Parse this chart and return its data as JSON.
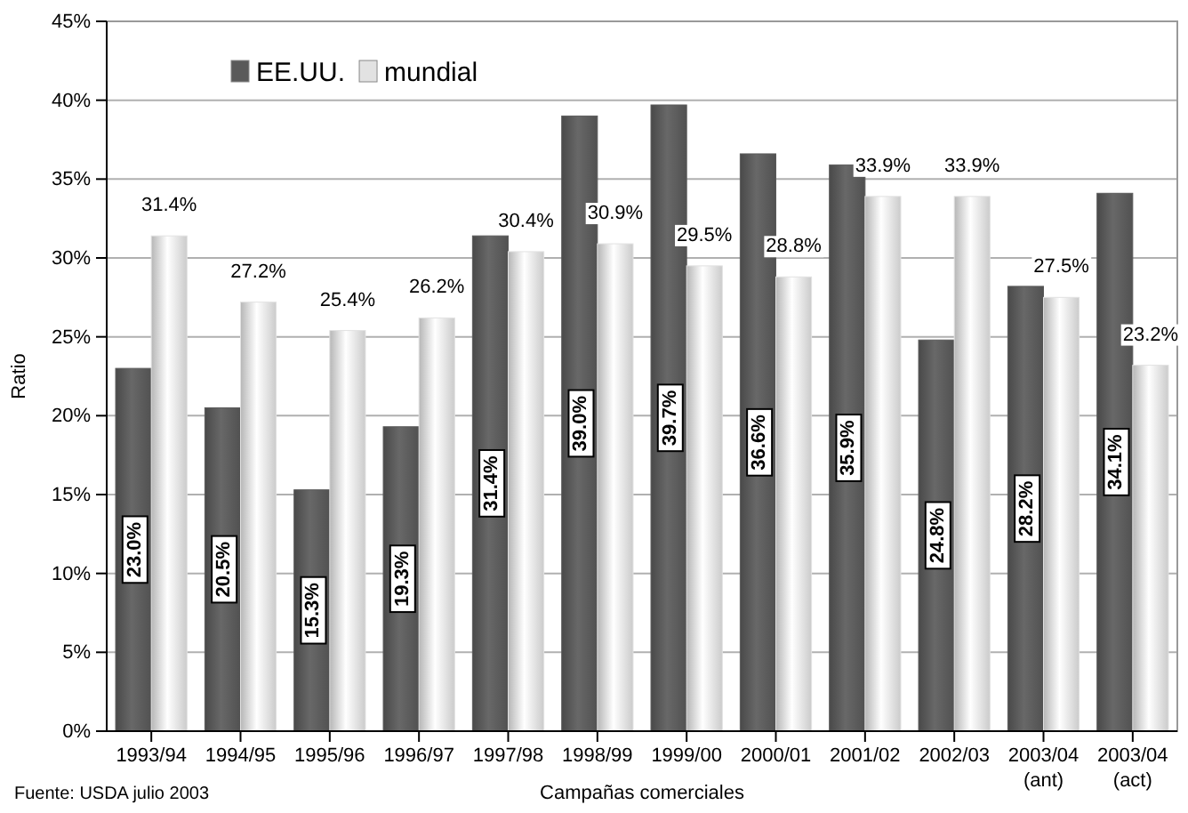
{
  "chart_data": {
    "type": "bar",
    "xlabel": "Campañas comerciales",
    "ylabel": "Ratio",
    "categories": [
      "1993/94",
      "1994/95",
      "1995/96",
      "1996/97",
      "1997/98",
      "1998/99",
      "1999/00",
      "2000/01",
      "2001/02",
      "2002/03",
      "2003/04 (ant)",
      "2003/04 (act)"
    ],
    "series": [
      {
        "name": "EE.UU.",
        "color": "#5a5a5a",
        "values": [
          23.0,
          20.5,
          15.3,
          19.3,
          31.4,
          39.0,
          39.7,
          36.6,
          35.9,
          24.8,
          28.2,
          34.1
        ],
        "value_labels": [
          "23.0%",
          "20.5%",
          "15.3%",
          "19.3%",
          "31.4%",
          "39.0%",
          "39.7%",
          "36.6%",
          "35.9%",
          "24.8%",
          "28.2%",
          "34.1%"
        ]
      },
      {
        "name": "mundial",
        "color": "#e2e2e2",
        "values": [
          31.4,
          27.2,
          25.4,
          26.2,
          30.4,
          30.9,
          29.5,
          28.8,
          33.9,
          33.9,
          27.5,
          23.2
        ],
        "value_labels": [
          "31.4%",
          "27.2%",
          "25.4%",
          "26.2%",
          "30.4%",
          "30.9%",
          "29.5%",
          "28.8%",
          "33.9%",
          "33.9%",
          "27.5%",
          "23.2%"
        ]
      }
    ],
    "ylim": [
      0,
      45
    ],
    "yticks": [
      {
        "value": 0,
        "label": "0%"
      },
      {
        "value": 5,
        "label": "5%"
      },
      {
        "value": 10,
        "label": "10%"
      },
      {
        "value": 15,
        "label": "15%"
      },
      {
        "value": 20,
        "label": "20%"
      },
      {
        "value": 25,
        "label": "25%"
      },
      {
        "value": 30,
        "label": "30%"
      },
      {
        "value": 35,
        "label": "35%"
      },
      {
        "value": 40,
        "label": "40%"
      },
      {
        "value": 45,
        "label": "45%"
      }
    ],
    "grid": "y",
    "legend": "top left",
    "annotations": [
      "Fuente: USDA julio 2003"
    ]
  }
}
